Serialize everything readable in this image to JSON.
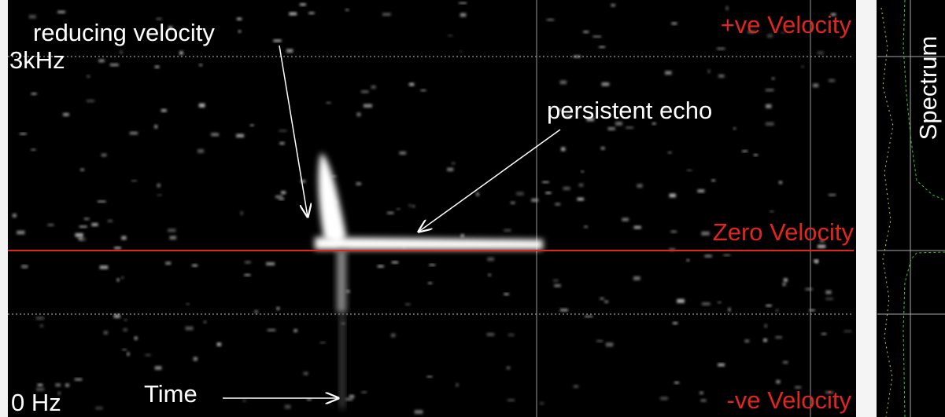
{
  "annotations": {
    "reducing_velocity": "reducing velocity",
    "persistent_echo": "persistent echo",
    "time": "Time"
  },
  "axis_labels": {
    "top_frequency": "3kHz",
    "bottom_frequency": "0 Hz"
  },
  "velocity_labels": {
    "positive": "+ve Velocity",
    "zero": "Zero Velocity",
    "negative": "-ve Velocity"
  },
  "side_panel": {
    "title": "Spectrum"
  }
}
